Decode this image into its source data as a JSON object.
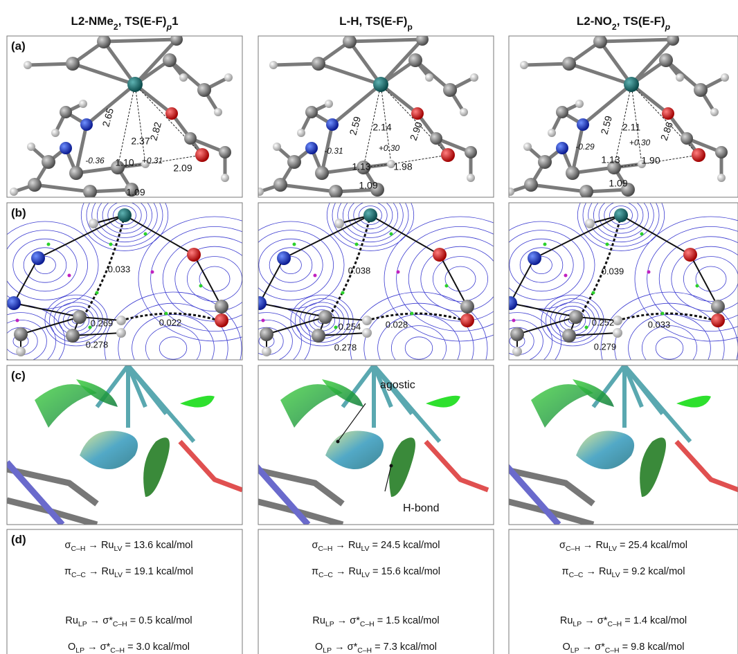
{
  "panel_labels": [
    "(a)",
    "(b)",
    "(c)",
    "(d)"
  ],
  "columns": [
    {
      "header": [
        "L2-NMe",
        "2",
        ", TS(E-F)",
        "p",
        "1"
      ],
      "geometry_labels": [
        "2.65",
        "2.82",
        "2.37",
        "-0.36",
        "1.10",
        "+0.31",
        "2.09",
        "1.09"
      ],
      "qtaim_labels": [
        "0.033",
        "0.269",
        "0.022",
        "0.278"
      ],
      "nbo_lines": [
        [
          "σ",
          "C–H",
          " → Ru",
          "LV",
          " = 13.6 kcal/mol"
        ],
        [
          "π",
          "C–C",
          " → Ru",
          "LV",
          " = 19.1 kcal/mol"
        ],
        [
          "Ru",
          "LP",
          " → σ*",
          "C–H",
          " = 0.5 kcal/mol"
        ],
        [
          "O",
          "LP",
          " → σ*",
          "C–H",
          " = 3.0 kcal/mol"
        ]
      ]
    },
    {
      "header": [
        "L-H, TS(E-F)",
        "p"
      ],
      "geometry_labels": [
        "2.59",
        "2.14",
        "2.90",
        "-0.31",
        "+0.30",
        "1.13",
        "1.98",
        "1.09"
      ],
      "qtaim_labels": [
        "0.038",
        "0.254",
        "0.028",
        "0.278"
      ],
      "nci_annotations": [
        "agostic",
        "H-bond"
      ],
      "nbo_lines": [
        [
          "σ",
          "C–H",
          " → Ru",
          "LV",
          " = 24.5 kcal/mol"
        ],
        [
          "π",
          "C–C",
          " → Ru",
          "LV",
          " = 15.6 kcal/mol"
        ],
        [
          "Ru",
          "LP",
          " → σ*",
          "C–H",
          " = 1.5 kcal/mol"
        ],
        [
          "O",
          "LP",
          " → σ*",
          "C–H",
          " = 7.3 kcal/mol"
        ]
      ]
    },
    {
      "header": [
        "L2-NO",
        "2",
        ", TS(E-F)",
        "p"
      ],
      "geometry_labels": [
        "2.59",
        "2.11",
        "2.86",
        "-0.29",
        "+0.30",
        "1.13",
        "1.90",
        "1.09"
      ],
      "qtaim_labels": [
        "0.039",
        "0.252",
        "0.033",
        "0.279"
      ],
      "nbo_lines": [
        [
          "σ",
          "C–H",
          " → Ru",
          "LV",
          " = 25.4 kcal/mol"
        ],
        [
          "π",
          "C–C",
          " → Ru",
          "LV",
          " = 9.2 kcal/mol"
        ],
        [
          "Ru",
          "LP",
          " → σ*",
          "C–H",
          " = 1.4 kcal/mol"
        ],
        [
          "O",
          "LP",
          " → σ*",
          "C–H",
          " = 9.8 kcal/mol"
        ]
      ]
    }
  ]
}
